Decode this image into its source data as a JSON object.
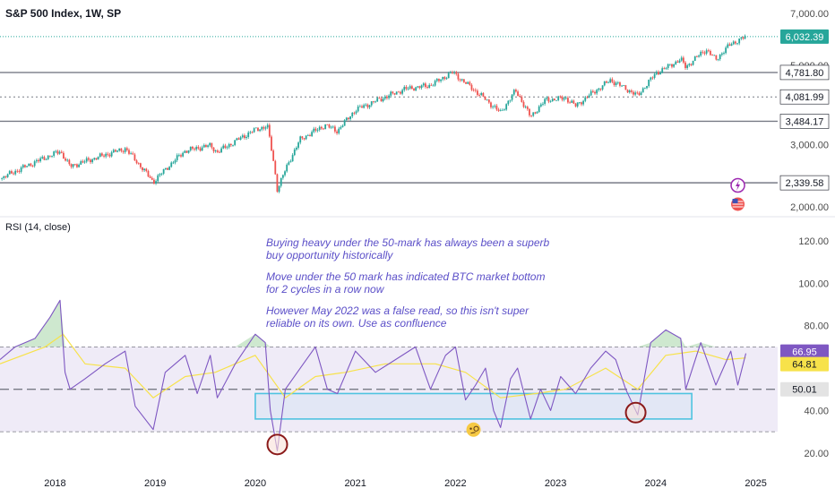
{
  "header": {
    "title": "S&P 500 Index, 1W, SP"
  },
  "rsi_panel": {
    "title": "RSI (14, close)"
  },
  "annotation": {
    "lines": [
      "Buying heavy under the 50-mark has always been a superb buy opportunity historically",
      "Move under the 50 mark has indicated BTC market bottom for 2 cycles in a row now",
      "However May 2022 was a false read, so this isn't super reliable on its own. Use as confluence"
    ]
  },
  "chart_data": [
    {
      "type": "candlestick",
      "title": "S&P 500 Index, 1W, SP",
      "y_axis_ticks": [
        7000,
        5000,
        3000,
        2000
      ],
      "y_tick_labels": [
        "7,000.00",
        "5,000.00",
        "3,000.00",
        "2,000.00"
      ],
      "scale": "log",
      "ylim": [
        1900,
        7300
      ],
      "current_price": 6032.39,
      "current_price_label": "6,032.39",
      "horizontal_levels": [
        {
          "value": 4781.8,
          "label": "4,781.80",
          "style": "solid"
        },
        {
          "value": 4081.99,
          "label": "4,081.99",
          "style": "dotted"
        },
        {
          "value": 3484.17,
          "label": "3,484.17",
          "style": "solid"
        },
        {
          "value": 2339.58,
          "label": "2,339.58",
          "style": "solid"
        }
      ],
      "price_path": [
        {
          "x": 2017.45,
          "y": 2400
        },
        {
          "x": 2018.05,
          "y": 2870
        },
        {
          "x": 2018.15,
          "y": 2600
        },
        {
          "x": 2018.7,
          "y": 2920
        },
        {
          "x": 2018.98,
          "y": 2350
        },
        {
          "x": 2019.3,
          "y": 2880
        },
        {
          "x": 2019.55,
          "y": 2980
        },
        {
          "x": 2019.62,
          "y": 2850
        },
        {
          "x": 2020.0,
          "y": 3300
        },
        {
          "x": 2020.12,
          "y": 3380
        },
        {
          "x": 2020.22,
          "y": 2240
        },
        {
          "x": 2020.45,
          "y": 3100
        },
        {
          "x": 2020.7,
          "y": 3400
        },
        {
          "x": 2020.82,
          "y": 3270
        },
        {
          "x": 2021.0,
          "y": 3750
        },
        {
          "x": 2021.5,
          "y": 4300
        },
        {
          "x": 2021.75,
          "y": 4400
        },
        {
          "x": 2021.97,
          "y": 4780
        },
        {
          "x": 2022.15,
          "y": 4350
        },
        {
          "x": 2022.45,
          "y": 3680
        },
        {
          "x": 2022.6,
          "y": 4250
        },
        {
          "x": 2022.75,
          "y": 3580
        },
        {
          "x": 2022.9,
          "y": 4000
        },
        {
          "x": 2023.1,
          "y": 4050
        },
        {
          "x": 2023.2,
          "y": 3850
        },
        {
          "x": 2023.55,
          "y": 4550
        },
        {
          "x": 2023.82,
          "y": 4110
        },
        {
          "x": 2024.0,
          "y": 4750
        },
        {
          "x": 2024.25,
          "y": 5200
        },
        {
          "x": 2024.3,
          "y": 4950
        },
        {
          "x": 2024.5,
          "y": 5550
        },
        {
          "x": 2024.6,
          "y": 5200
        },
        {
          "x": 2024.75,
          "y": 5750
        },
        {
          "x": 2024.9,
          "y": 6032
        }
      ],
      "event_markers": [
        "lightning-icon",
        "us-flag-icon"
      ]
    },
    {
      "type": "line",
      "title": "RSI (14, close)",
      "y_axis_ticks": [
        120,
        100,
        80,
        40,
        20
      ],
      "y_tick_labels": [
        "120.00",
        "100.00",
        "80.00",
        "40.00",
        "20.00"
      ],
      "ylim": [
        14,
        128
      ],
      "bands": {
        "upper": 70,
        "middle": 50,
        "lower": 30
      },
      "band_fill": "#efebf7",
      "value_labels": [
        {
          "value": 66.95,
          "label": "66.95",
          "color": "#7e57c2"
        },
        {
          "value": 64.81,
          "label": "64.81",
          "color": "#f7e24a"
        },
        {
          "value": 50.01,
          "label": "50.01",
          "color": "#e3e3e3"
        }
      ],
      "series": [
        {
          "line_color": "#7e57c2",
          "points": [
            {
              "x": 2017.45,
              "y": 64
            },
            {
              "x": 2017.6,
              "y": 70
            },
            {
              "x": 2017.8,
              "y": 74
            },
            {
              "x": 2017.95,
              "y": 84
            },
            {
              "x": 2018.05,
              "y": 92
            },
            {
              "x": 2018.1,
              "y": 58
            },
            {
              "x": 2018.15,
              "y": 50
            },
            {
              "x": 2018.3,
              "y": 55
            },
            {
              "x": 2018.5,
              "y": 62
            },
            {
              "x": 2018.7,
              "y": 68
            },
            {
              "x": 2018.8,
              "y": 42
            },
            {
              "x": 2018.98,
              "y": 31
            },
            {
              "x": 2019.1,
              "y": 58
            },
            {
              "x": 2019.3,
              "y": 66
            },
            {
              "x": 2019.42,
              "y": 48
            },
            {
              "x": 2019.55,
              "y": 66
            },
            {
              "x": 2019.62,
              "y": 46
            },
            {
              "x": 2019.8,
              "y": 62
            },
            {
              "x": 2020.0,
              "y": 76
            },
            {
              "x": 2020.1,
              "y": 72
            },
            {
              "x": 2020.15,
              "y": 40
            },
            {
              "x": 2020.22,
              "y": 21
            },
            {
              "x": 2020.3,
              "y": 50
            },
            {
              "x": 2020.45,
              "y": 60
            },
            {
              "x": 2020.6,
              "y": 70
            },
            {
              "x": 2020.72,
              "y": 50
            },
            {
              "x": 2020.82,
              "y": 48
            },
            {
              "x": 2021.0,
              "y": 68
            },
            {
              "x": 2021.2,
              "y": 58
            },
            {
              "x": 2021.4,
              "y": 64
            },
            {
              "x": 2021.6,
              "y": 70
            },
            {
              "x": 2021.75,
              "y": 50
            },
            {
              "x": 2021.9,
              "y": 66
            },
            {
              "x": 2022.0,
              "y": 70
            },
            {
              "x": 2022.1,
              "y": 45
            },
            {
              "x": 2022.2,
              "y": 52
            },
            {
              "x": 2022.3,
              "y": 60
            },
            {
              "x": 2022.38,
              "y": 40
            },
            {
              "x": 2022.45,
              "y": 32
            },
            {
              "x": 2022.55,
              "y": 55
            },
            {
              "x": 2022.62,
              "y": 60
            },
            {
              "x": 2022.75,
              "y": 36
            },
            {
              "x": 2022.85,
              "y": 50
            },
            {
              "x": 2022.95,
              "y": 40
            },
            {
              "x": 2023.05,
              "y": 56
            },
            {
              "x": 2023.2,
              "y": 48
            },
            {
              "x": 2023.35,
              "y": 60
            },
            {
              "x": 2023.5,
              "y": 68
            },
            {
              "x": 2023.6,
              "y": 64
            },
            {
              "x": 2023.7,
              "y": 50
            },
            {
              "x": 2023.82,
              "y": 38
            },
            {
              "x": 2023.95,
              "y": 72
            },
            {
              "x": 2024.1,
              "y": 78
            },
            {
              "x": 2024.25,
              "y": 74
            },
            {
              "x": 2024.3,
              "y": 50
            },
            {
              "x": 2024.45,
              "y": 72
            },
            {
              "x": 2024.6,
              "y": 52
            },
            {
              "x": 2024.75,
              "y": 68
            },
            {
              "x": 2024.82,
              "y": 52
            },
            {
              "x": 2024.9,
              "y": 66.95
            }
          ]
        },
        {
          "line_color": "#f7e24a",
          "points": [
            {
              "x": 2017.45,
              "y": 62
            },
            {
              "x": 2017.9,
              "y": 70
            },
            {
              "x": 2018.08,
              "y": 76
            },
            {
              "x": 2018.3,
              "y": 62
            },
            {
              "x": 2018.7,
              "y": 60
            },
            {
              "x": 2018.98,
              "y": 46
            },
            {
              "x": 2019.3,
              "y": 56
            },
            {
              "x": 2019.6,
              "y": 58
            },
            {
              "x": 2020.0,
              "y": 66
            },
            {
              "x": 2020.3,
              "y": 46
            },
            {
              "x": 2020.6,
              "y": 56
            },
            {
              "x": 2020.9,
              "y": 58
            },
            {
              "x": 2021.3,
              "y": 62
            },
            {
              "x": 2021.8,
              "y": 62
            },
            {
              "x": 2022.1,
              "y": 58
            },
            {
              "x": 2022.45,
              "y": 46
            },
            {
              "x": 2022.8,
              "y": 48
            },
            {
              "x": 2023.1,
              "y": 50
            },
            {
              "x": 2023.5,
              "y": 60
            },
            {
              "x": 2023.82,
              "y": 50
            },
            {
              "x": 2024.1,
              "y": 66
            },
            {
              "x": 2024.4,
              "y": 68
            },
            {
              "x": 2024.7,
              "y": 64
            },
            {
              "x": 2024.9,
              "y": 64.81
            }
          ]
        }
      ],
      "zones": [
        {
          "x_from": 2020.0,
          "x_to": 2024.36,
          "y_from": 36,
          "y_to": 48,
          "color": "#4fc3e0"
        }
      ],
      "circle_markers": [
        {
          "x": 2020.22,
          "y": 24
        },
        {
          "x": 2023.8,
          "y": 39
        }
      ],
      "emoji_markers": [
        {
          "x": 2022.18,
          "y": 31,
          "icon": "monocle-face-icon"
        }
      ]
    }
  ],
  "x_axis": {
    "ticks": [
      {
        "value": 2018,
        "label": "2018"
      },
      {
        "value": 2019,
        "label": "2019"
      },
      {
        "value": 2020,
        "label": "2020"
      },
      {
        "value": 2021,
        "label": "2021"
      },
      {
        "value": 2022,
        "label": "2022"
      },
      {
        "value": 2023,
        "label": "2023"
      },
      {
        "value": 2024,
        "label": "2024"
      },
      {
        "value": 2025,
        "label": "2025"
      }
    ]
  },
  "colors": {
    "up": "#26a69a",
    "down": "#ef5350",
    "price_line": "#26a69a",
    "rsi": "#7e57c2",
    "rsi_ma": "#f7e24a",
    "level": "#787b86"
  }
}
